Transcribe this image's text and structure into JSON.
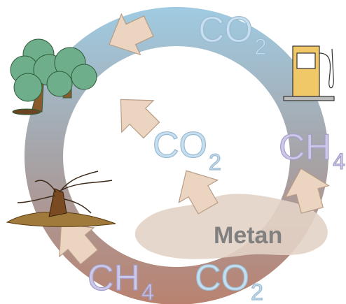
{
  "labels": [
    {
      "main": "CO",
      "sub": "2"
    },
    {
      "main": "CO",
      "sub": "2"
    },
    {
      "main": "CH",
      "sub": "4"
    },
    {
      "main": "Metan"
    },
    {
      "main": "CH",
      "sub": "4"
    },
    {
      "main": "CO",
      "sub": "2"
    }
  ]
}
